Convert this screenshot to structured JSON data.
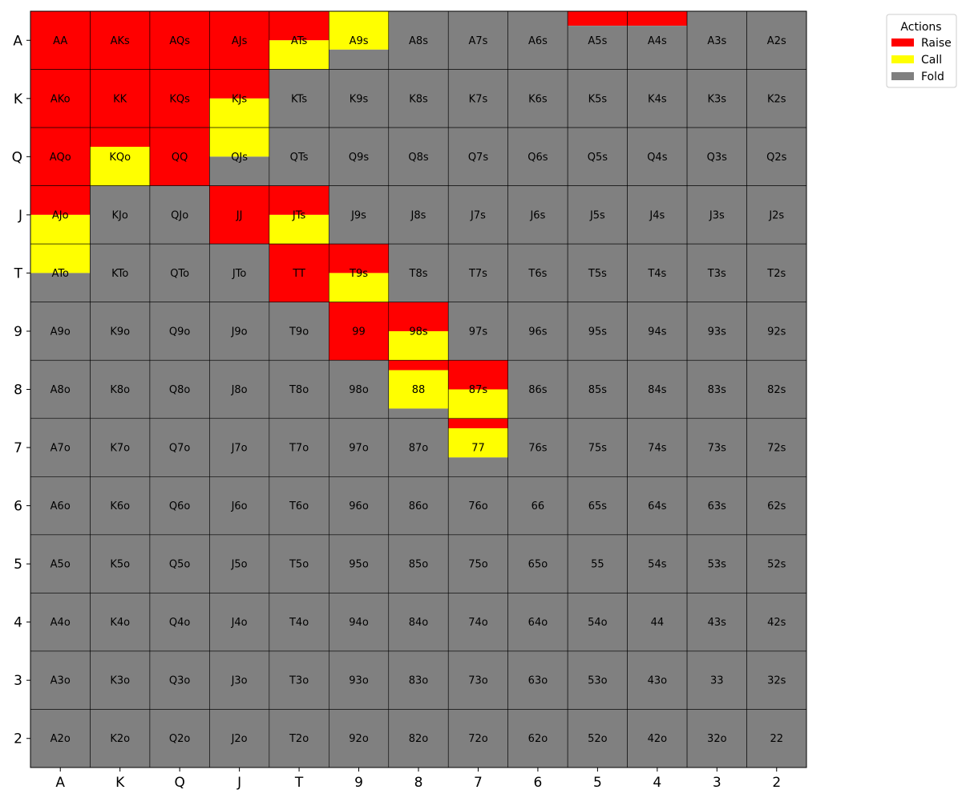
{
  "chart_data": {
    "type": "heatmap",
    "title": "",
    "xlabel": "",
    "ylabel": "",
    "x_ticks": [
      "A",
      "K",
      "Q",
      "J",
      "T",
      "9",
      "8",
      "7",
      "6",
      "5",
      "4",
      "3",
      "2"
    ],
    "y_ticks": [
      "A",
      "K",
      "Q",
      "J",
      "T",
      "9",
      "8",
      "7",
      "6",
      "5",
      "4",
      "3",
      "2"
    ],
    "legend": {
      "title": "Actions",
      "placement": "top-right",
      "entries": [
        {
          "label": "Raise",
          "color": "#ff0000"
        },
        {
          "label": "Call",
          "color": "#ffff00"
        },
        {
          "label": "Fold",
          "color": "#808080"
        }
      ]
    },
    "action_order": [
      "Raise",
      "Call",
      "Fold"
    ],
    "colors": {
      "Raise": "#ff0000",
      "Call": "#ffff00",
      "Fold": "#808080"
    },
    "hands": [
      [
        "AA",
        "AKs",
        "AQs",
        "AJs",
        "ATs",
        "A9s",
        "A8s",
        "A7s",
        "A6s",
        "A5s",
        "A4s",
        "A3s",
        "A2s"
      ],
      [
        "AKo",
        "KK",
        "KQs",
        "KJs",
        "KTs",
        "K9s",
        "K8s",
        "K7s",
        "K6s",
        "K5s",
        "K4s",
        "K3s",
        "K2s"
      ],
      [
        "AQo",
        "KQo",
        "QQ",
        "QJs",
        "QTs",
        "Q9s",
        "Q8s",
        "Q7s",
        "Q6s",
        "Q5s",
        "Q4s",
        "Q3s",
        "Q2s"
      ],
      [
        "AJo",
        "KJo",
        "QJo",
        "JJ",
        "JTs",
        "J9s",
        "J8s",
        "J7s",
        "J6s",
        "J5s",
        "J4s",
        "J3s",
        "J2s"
      ],
      [
        "ATo",
        "KTo",
        "QTo",
        "JTo",
        "TT",
        "T9s",
        "T8s",
        "T7s",
        "T6s",
        "T5s",
        "T4s",
        "T3s",
        "T2s"
      ],
      [
        "A9o",
        "K9o",
        "Q9o",
        "J9o",
        "T9o",
        "99",
        "98s",
        "97s",
        "96s",
        "95s",
        "94s",
        "93s",
        "92s"
      ],
      [
        "A8o",
        "K8o",
        "Q8o",
        "J8o",
        "T8o",
        "98o",
        "88",
        "87s",
        "86s",
        "85s",
        "84s",
        "83s",
        "82s"
      ],
      [
        "A7o",
        "K7o",
        "Q7o",
        "J7o",
        "T7o",
        "97o",
        "87o",
        "77",
        "76s",
        "75s",
        "74s",
        "73s",
        "72s"
      ],
      [
        "A6o",
        "K6o",
        "Q6o",
        "J6o",
        "T6o",
        "96o",
        "86o",
        "76o",
        "66",
        "65s",
        "64s",
        "63s",
        "62s"
      ],
      [
        "A5o",
        "K5o",
        "Q5o",
        "J5o",
        "T5o",
        "95o",
        "85o",
        "75o",
        "65o",
        "55",
        "54s",
        "53s",
        "52s"
      ],
      [
        "A4o",
        "K4o",
        "Q4o",
        "J4o",
        "T4o",
        "94o",
        "84o",
        "74o",
        "64o",
        "54o",
        "44",
        "43s",
        "42s"
      ],
      [
        "A3o",
        "K3o",
        "Q3o",
        "J3o",
        "T3o",
        "93o",
        "83o",
        "73o",
        "63o",
        "53o",
        "43o",
        "33",
        "32s"
      ],
      [
        "A2o",
        "K2o",
        "Q2o",
        "J2o",
        "T2o",
        "92o",
        "82o",
        "72o",
        "62o",
        "52o",
        "42o",
        "32o",
        "22"
      ]
    ],
    "frequencies": {
      "AA": {
        "Raise": 1.0
      },
      "AKs": {
        "Raise": 1.0
      },
      "AQs": {
        "Raise": 1.0
      },
      "AJs": {
        "Raise": 1.0
      },
      "ATs": {
        "Raise": 0.5,
        "Call": 0.5
      },
      "A9s": {
        "Call": 0.66,
        "Fold": 0.34
      },
      "A5s": {
        "Raise": 0.25,
        "Fold": 0.75
      },
      "A4s": {
        "Raise": 0.25,
        "Fold": 0.75
      },
      "AKo": {
        "Raise": 1.0
      },
      "KK": {
        "Raise": 1.0
      },
      "KQs": {
        "Raise": 1.0
      },
      "KJs": {
        "Raise": 0.5,
        "Call": 0.5
      },
      "AQo": {
        "Raise": 1.0
      },
      "KQo": {
        "Raise": 0.33,
        "Call": 0.67
      },
      "QQ": {
        "Raise": 1.0
      },
      "QJs": {
        "Call": 0.5,
        "Fold": 0.5
      },
      "AJo": {
        "Raise": 0.5,
        "Call": 0.5
      },
      "JJ": {
        "Raise": 1.0
      },
      "JTs": {
        "Raise": 0.5,
        "Call": 0.5
      },
      "ATo": {
        "Call": 0.5,
        "Fold": 0.5
      },
      "TT": {
        "Raise": 1.0
      },
      "T9s": {
        "Raise": 0.5,
        "Call": 0.5
      },
      "99": {
        "Raise": 1.0
      },
      "98s": {
        "Raise": 0.5,
        "Call": 0.5
      },
      "88": {
        "Raise": 0.17,
        "Call": 0.66,
        "Fold": 0.17
      },
      "87s": {
        "Raise": 0.5,
        "Call": 0.5
      },
      "77": {
        "Raise": 0.17,
        "Call": 0.5,
        "Fold": 0.33
      }
    },
    "default_action": "Fold"
  }
}
